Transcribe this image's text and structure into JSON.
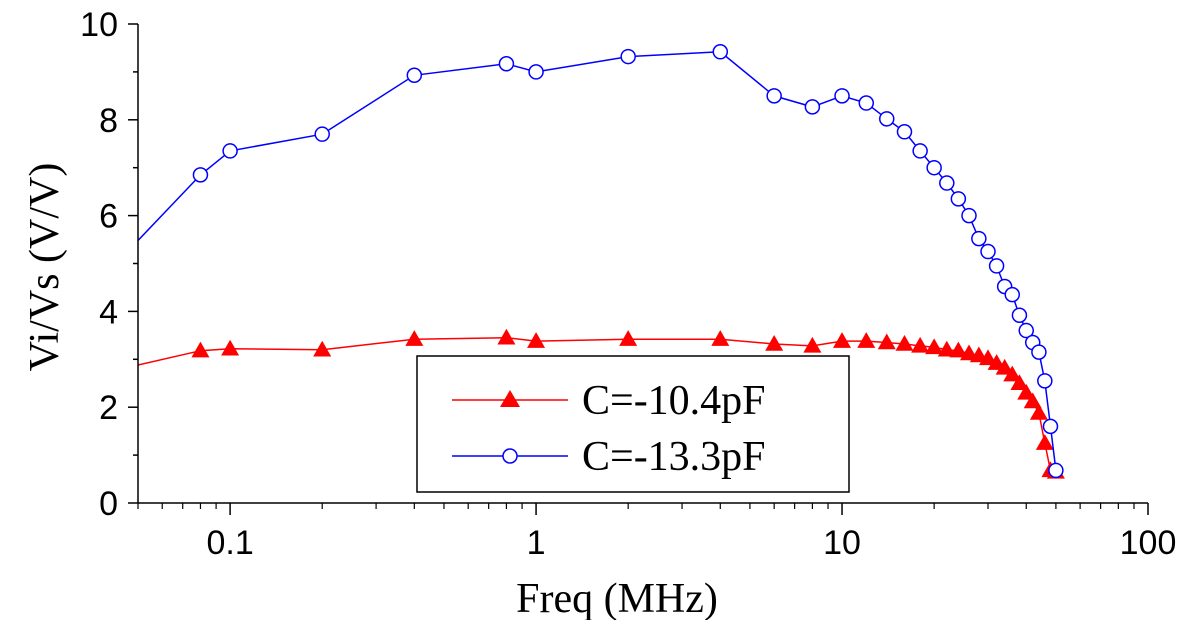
{
  "chart_data": {
    "type": "line",
    "xlabel": "Freq (MHz)",
    "ylabel": "Vi/Vs    (V/V)",
    "xscale": "log",
    "xlim": [
      0.05,
      100
    ],
    "ylim": [
      0,
      10
    ],
    "grid": false,
    "legend_position": "bottom-center",
    "x_ticks": [
      {
        "value": 0.1,
        "label": "0.1"
      },
      {
        "value": 1,
        "label": "1"
      },
      {
        "value": 10,
        "label": "10"
      },
      {
        "value": 100,
        "label": "100"
      }
    ],
    "y_ticks": [
      {
        "value": 0,
        "label": "0"
      },
      {
        "value": 2,
        "label": "2"
      },
      {
        "value": 4,
        "label": "4"
      },
      {
        "value": 6,
        "label": "6"
      },
      {
        "value": 8,
        "label": "8"
      },
      {
        "value": 10,
        "label": "10"
      }
    ],
    "series": [
      {
        "name": "C=-10.4pF",
        "color": "#ff0000",
        "marker": "filled-triangle",
        "x": [
          0.05,
          0.08,
          0.1,
          0.2,
          0.4,
          0.8,
          1,
          2,
          4,
          6,
          8,
          10,
          12,
          14,
          16,
          18,
          20,
          22,
          24,
          26,
          28,
          30,
          32,
          34,
          36,
          38,
          40,
          42,
          44,
          46,
          48,
          50
        ],
        "y": [
          2.88,
          3.18,
          3.22,
          3.2,
          3.42,
          3.45,
          3.38,
          3.42,
          3.42,
          3.32,
          3.28,
          3.38,
          3.38,
          3.35,
          3.32,
          3.28,
          3.25,
          3.2,
          3.18,
          3.12,
          3.08,
          3.02,
          2.92,
          2.82,
          2.68,
          2.5,
          2.3,
          2.12,
          1.88,
          1.25,
          0.68,
          0.65
        ]
      },
      {
        "name": "C=-13.3pF",
        "color": "#0000ff",
        "marker": "open-circle",
        "x": [
          0.05,
          0.08,
          0.1,
          0.2,
          0.4,
          0.8,
          1,
          2,
          4,
          6,
          8,
          10,
          12,
          14,
          16,
          18,
          20,
          22,
          24,
          26,
          28,
          30,
          32,
          34,
          36,
          38,
          40,
          42,
          44,
          46,
          48,
          50
        ],
        "y": [
          5.48,
          6.85,
          7.35,
          7.7,
          8.93,
          9.17,
          9.0,
          9.32,
          9.42,
          8.5,
          8.27,
          8.5,
          8.35,
          8.02,
          7.75,
          7.35,
          7.0,
          6.68,
          6.35,
          6.0,
          5.52,
          5.25,
          4.95,
          4.52,
          4.35,
          3.92,
          3.6,
          3.35,
          3.15,
          2.55,
          1.6,
          0.68
        ]
      }
    ]
  }
}
